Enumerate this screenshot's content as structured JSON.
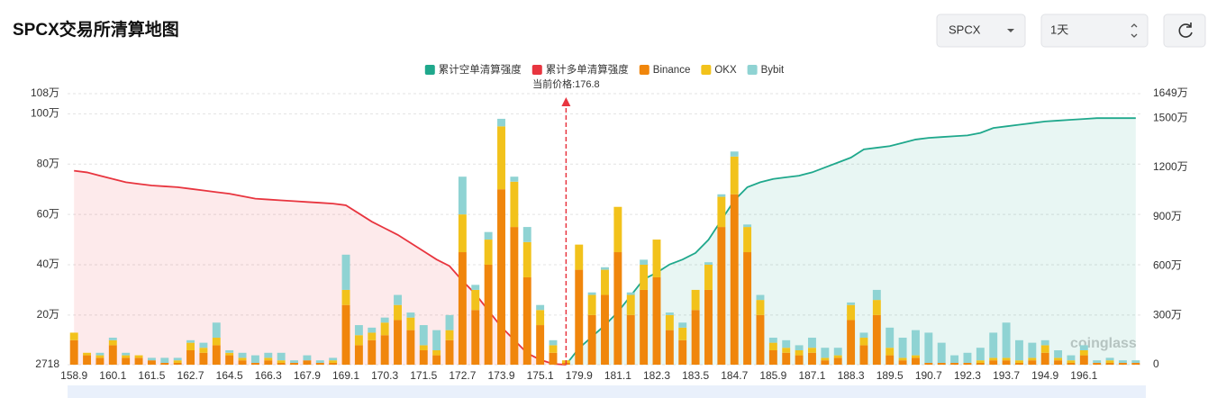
{
  "header": {
    "title": "SPCX交易所清算地图",
    "symbol_select": "SPCX",
    "range_select": "1天"
  },
  "watermark": "coinglass",
  "chart_data": {
    "type": "bar",
    "annotation": "当前价格:176.8",
    "categories": [
      "158.9",
      null,
      null,
      "160.1",
      null,
      null,
      "161.5",
      null,
      null,
      "162.7",
      null,
      null,
      "164.5",
      null,
      null,
      "166.3",
      null,
      null,
      "167.9",
      null,
      null,
      "169.1",
      null,
      null,
      "170.3",
      null,
      null,
      "171.5",
      null,
      null,
      "172.7",
      null,
      null,
      "173.9",
      null,
      null,
      "175.1",
      null,
      null,
      "179.9",
      null,
      null,
      "181.1",
      null,
      null,
      "182.3",
      null,
      null,
      "183.5",
      null,
      null,
      "184.7",
      null,
      null,
      "185.9",
      null,
      null,
      "187.1",
      null,
      null,
      "188.3",
      null,
      null,
      "189.5",
      null,
      null,
      "190.7",
      null,
      null,
      "192.3",
      null,
      null,
      "193.7",
      null,
      null,
      "194.9",
      null,
      null,
      "196.1",
      null,
      null,
      null,
      null
    ],
    "ylim": [
      2718,
      1080000
    ],
    "yticks": [
      2718,
      {
        "value": 200000,
        "label": "20万"
      },
      {
        "value": 400000,
        "label": "40万"
      },
      {
        "value": 600000,
        "label": "60万"
      },
      {
        "value": 800000,
        "label": "80万"
      },
      {
        "value": 1000000,
        "label": "100万"
      },
      {
        "value": 1080000,
        "label": "108万"
      }
    ],
    "y2lim": [
      0,
      16490000
    ],
    "y2ticks": [
      0,
      {
        "value": 3000000,
        "label": "300万"
      },
      {
        "value": 6000000,
        "label": "600万"
      },
      {
        "value": 9000000,
        "label": "900万"
      },
      {
        "value": 12000000,
        "label": "1200万"
      },
      {
        "value": 15000000,
        "label": "1500万"
      },
      {
        "value": 16490000,
        "label": "1649万"
      }
    ],
    "grid": true,
    "series": [
      {
        "name": "累计空单清算强度",
        "color": "#1fa88c",
        "type": "line",
        "axis": "y2",
        "values": [
          null,
          null,
          null,
          null,
          null,
          null,
          null,
          null,
          null,
          null,
          null,
          null,
          null,
          null,
          null,
          null,
          null,
          null,
          null,
          null,
          null,
          null,
          null,
          null,
          null,
          null,
          null,
          null,
          null,
          null,
          null,
          null,
          null,
          null,
          null,
          null,
          null,
          null,
          0,
          1000000,
          1700000,
          2400000,
          3200000,
          4200000,
          5200000,
          5600000,
          6100000,
          6400000,
          6800000,
          7600000,
          8800000,
          10000000,
          10800000,
          11100000,
          11300000,
          11400000,
          11500000,
          11700000,
          12000000,
          12300000,
          12600000,
          13100000,
          13200000,
          13300000,
          13500000,
          13700000,
          13800000,
          13850000,
          13900000,
          13950000,
          14100000,
          14400000,
          14500000,
          14600000,
          14700000,
          14800000,
          14850000,
          14900000,
          14950000,
          15000000,
          15000000,
          15000000,
          15000000
        ]
      },
      {
        "name": "累计多单清算强度",
        "color": "#e8353f",
        "type": "line",
        "axis": "y2",
        "values": [
          11800000,
          11700000,
          11500000,
          11300000,
          11100000,
          11000000,
          10900000,
          10850000,
          10800000,
          10700000,
          10600000,
          10500000,
          10400000,
          10250000,
          10100000,
          10050000,
          10000000,
          9950000,
          9900000,
          9850000,
          9800000,
          9700000,
          9200000,
          8700000,
          8300000,
          7900000,
          7400000,
          6900000,
          6400000,
          6000000,
          5100000,
          4300000,
          3300000,
          2300000,
          1500000,
          700000,
          300000,
          50000,
          0,
          null,
          null,
          null,
          null,
          null,
          null,
          null,
          null,
          null,
          null,
          null,
          null,
          null,
          null,
          null,
          null,
          null,
          null,
          null,
          null,
          null,
          null,
          null,
          null,
          null,
          null,
          null,
          null,
          null,
          null,
          null,
          null,
          null,
          null,
          null,
          null,
          null,
          null,
          null,
          null,
          null,
          null,
          null,
          null
        ]
      },
      {
        "name": "Binance",
        "color": "#f0860c",
        "type": "bar",
        "values": [
          100000,
          40000,
          30000,
          80000,
          30000,
          30000,
          20000,
          10000,
          10000,
          60000,
          50000,
          80000,
          40000,
          20000,
          10000,
          20000,
          10000,
          10000,
          20000,
          10000,
          10000,
          240000,
          80000,
          100000,
          120000,
          180000,
          140000,
          60000,
          40000,
          100000,
          450000,
          220000,
          400000,
          700000,
          550000,
          350000,
          160000,
          50000,
          10000,
          380000,
          200000,
          280000,
          450000,
          200000,
          300000,
          350000,
          140000,
          100000,
          220000,
          300000,
          550000,
          680000,
          450000,
          200000,
          60000,
          50000,
          40000,
          50000,
          20000,
          30000,
          180000,
          80000,
          200000,
          40000,
          20000,
          30000,
          10000,
          10000,
          10000,
          10000,
          10000,
          20000,
          20000,
          10000,
          20000,
          50000,
          20000,
          10000,
          40000,
          10000,
          10000,
          10000,
          10000
        ]
      },
      {
        "name": "OKX",
        "color": "#f2c21b",
        "type": "bar",
        "values": [
          30000,
          10000,
          10000,
          20000,
          10000,
          10000,
          0,
          0,
          10000,
          30000,
          20000,
          30000,
          10000,
          10000,
          0,
          10000,
          10000,
          0,
          0,
          0,
          10000,
          60000,
          40000,
          30000,
          50000,
          60000,
          50000,
          20000,
          20000,
          40000,
          150000,
          80000,
          100000,
          250000,
          180000,
          140000,
          60000,
          30000,
          10000,
          100000,
          80000,
          100000,
          180000,
          80000,
          100000,
          150000,
          60000,
          50000,
          80000,
          100000,
          120000,
          150000,
          100000,
          60000,
          30000,
          20000,
          20000,
          20000,
          10000,
          10000,
          60000,
          30000,
          60000,
          30000,
          10000,
          10000,
          0,
          0,
          0,
          0,
          10000,
          10000,
          10000,
          10000,
          10000,
          30000,
          10000,
          10000,
          20000,
          0,
          10000,
          0,
          0
        ]
      },
      {
        "name": "Bybit",
        "color": "#8fd3d3",
        "type": "bar",
        "values": [
          0,
          0,
          10000,
          10000,
          10000,
          0,
          10000,
          20000,
          10000,
          10000,
          20000,
          60000,
          10000,
          20000,
          30000,
          20000,
          30000,
          10000,
          20000,
          10000,
          10000,
          140000,
          40000,
          20000,
          20000,
          40000,
          20000,
          80000,
          80000,
          60000,
          150000,
          20000,
          30000,
          30000,
          20000,
          60000,
          20000,
          20000,
          0,
          0,
          10000,
          10000,
          0,
          10000,
          20000,
          0,
          10000,
          20000,
          0,
          10000,
          10000,
          20000,
          10000,
          20000,
          20000,
          30000,
          20000,
          40000,
          40000,
          30000,
          10000,
          20000,
          40000,
          80000,
          80000,
          100000,
          120000,
          80000,
          30000,
          40000,
          50000,
          100000,
          140000,
          80000,
          60000,
          20000,
          30000,
          20000,
          20000,
          10000,
          10000,
          10000,
          10000
        ]
      }
    ]
  }
}
